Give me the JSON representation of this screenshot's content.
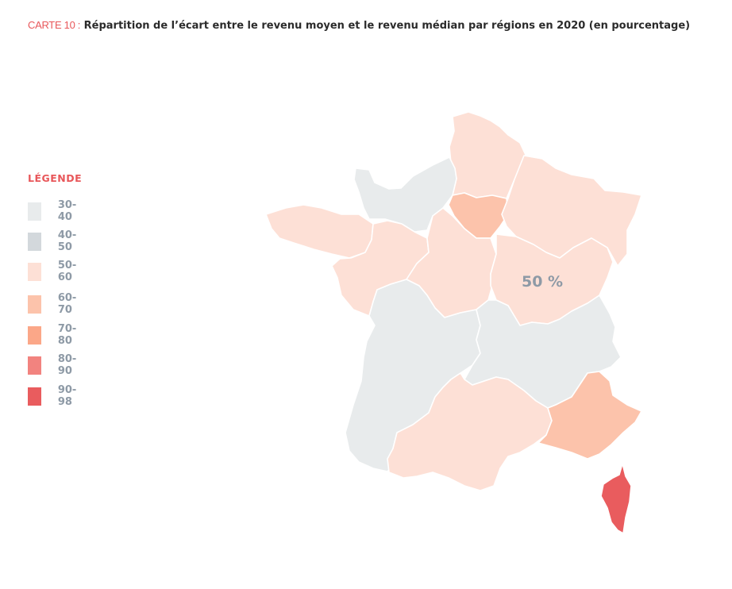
{
  "title": {
    "prefix": "CARTE 10 :",
    "text": "Répartition de l’écart entre le revenu moyen et le revenu médian par régions en 2020 (en pourcentage)"
  },
  "legend": {
    "title": "LÉGENDE",
    "items": [
      {
        "label": "30-40",
        "color": "#e8ebec"
      },
      {
        "label": "40-50",
        "color": "#d3d8dc"
      },
      {
        "label": "50-60",
        "color": "#fde0d6"
      },
      {
        "label": "60-70",
        "color": "#fcc3ab"
      },
      {
        "label": "70-80",
        "color": "#fba788"
      },
      {
        "label": "80-90",
        "color": "#f2837f"
      },
      {
        "label": "90-98",
        "color": "#e95c5e"
      }
    ]
  },
  "map": {
    "highlight_label": "50 %",
    "regions": [
      {
        "name": "Hauts-de-France",
        "class": "50-60",
        "color": "#fde0d6"
      },
      {
        "name": "Normandie",
        "class": "30-40",
        "color": "#e8ebec"
      },
      {
        "name": "Île-de-France",
        "class": "60-70",
        "color": "#fcc3ab"
      },
      {
        "name": "Grand Est",
        "class": "50-60",
        "color": "#fde0d6"
      },
      {
        "name": "Bretagne",
        "class": "50-60",
        "color": "#fde0d6"
      },
      {
        "name": "Pays de la Loire",
        "class": "50-60",
        "color": "#fde0d6"
      },
      {
        "name": "Centre-Val de Loire",
        "class": "50-60",
        "color": "#fde0d6"
      },
      {
        "name": "Bourgogne-Franche-Comté",
        "class": "50-60",
        "color": "#fde0d6"
      },
      {
        "name": "Nouvelle-Aquitaine",
        "class": "30-40",
        "color": "#e8ebec"
      },
      {
        "name": "Auvergne-Rhône-Alpes",
        "class": "30-40",
        "color": "#e8ebec"
      },
      {
        "name": "Occitanie",
        "class": "50-60",
        "color": "#fde0d6"
      },
      {
        "name": "Provence-Alpes-Côte d'Azur",
        "class": "60-70",
        "color": "#fcc3ab"
      },
      {
        "name": "Corse",
        "class": "90-98",
        "color": "#e95c5e"
      }
    ]
  }
}
